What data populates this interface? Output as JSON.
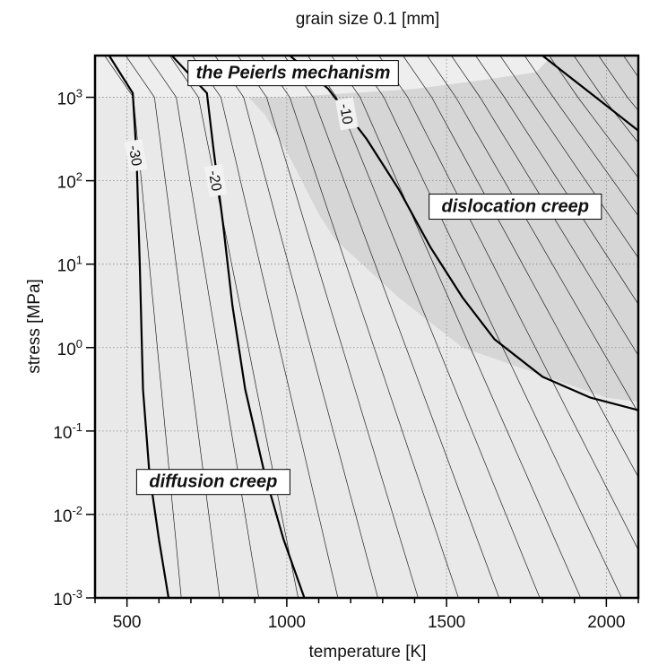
{
  "chart_data": {
    "type": "contour",
    "title": "grain size 0.1 [mm]",
    "xlabel": "temperature [K]",
    "ylabel": "stress [MPa]",
    "xlim": [
      400,
      2100
    ],
    "ylim_log10": [
      -3,
      3.5
    ],
    "y_scale": "log",
    "x_ticks": [
      {
        "value": 500,
        "label": "500"
      },
      {
        "value": 1000,
        "label": "1000"
      },
      {
        "value": 1500,
        "label": "1500"
      },
      {
        "value": 2000,
        "label": "2000"
      }
    ],
    "y_ticks": [
      {
        "exp": -3,
        "base": "10",
        "sup": "-3"
      },
      {
        "exp": -2,
        "base": "10",
        "sup": "-2"
      },
      {
        "exp": -1,
        "base": "10",
        "sup": "-1"
      },
      {
        "exp": 0,
        "base": "10",
        "sup": "0"
      },
      {
        "exp": 1,
        "base": "10",
        "sup": "1"
      },
      {
        "exp": 2,
        "base": "10",
        "sup": "2"
      },
      {
        "exp": 3,
        "base": "10",
        "sup": "3"
      }
    ],
    "grid": true,
    "regions": [
      {
        "label": "the Peierls mechanism",
        "fill": "#eeeeee"
      },
      {
        "label": "dislocation creep",
        "fill": "#d6d6d6"
      },
      {
        "label": "diffusion creep",
        "fill": "#e9e9e9"
      }
    ],
    "regions_label_anchor": [
      {
        "x": 1020,
        "y_log10": 3.3
      },
      {
        "x": 1715,
        "y_log10": 1.7
      },
      {
        "x": 770,
        "y_log10": -1.6
      }
    ],
    "dislocation_boundary": [
      [
        880,
        3.0
      ],
      [
        930,
        2.8
      ],
      [
        1000,
        2.35
      ],
      [
        1060,
        1.9
      ],
      [
        1100,
        1.6
      ],
      [
        1150,
        1.3
      ],
      [
        1250,
        0.95
      ],
      [
        1350,
        0.6
      ],
      [
        1450,
        0.3
      ],
      [
        1550,
        0.0
      ],
      [
        1700,
        -0.2
      ],
      [
        1850,
        -0.4
      ],
      [
        2000,
        -0.6
      ],
      [
        2100,
        -0.65
      ]
    ],
    "dislocation_top_edge": [
      [
        2100,
        3.5
      ],
      [
        1830,
        3.5
      ],
      [
        1780,
        3.3
      ],
      [
        1600,
        3.2
      ],
      [
        1400,
        3.1
      ],
      [
        1200,
        3.05
      ],
      [
        1000,
        3.0
      ]
    ],
    "contours": [
      {
        "level": -30,
        "label": "-30",
        "major": true,
        "points": [
          [
            444,
            3.5
          ],
          [
            518,
            3.05
          ],
          [
            530,
            2.3
          ],
          [
            540,
            1.0
          ],
          [
            550,
            -0.5
          ],
          [
            570,
            -1.5
          ],
          [
            600,
            -2.3
          ],
          [
            630,
            -3.0
          ]
        ]
      },
      {
        "level": -20,
        "label": "-20",
        "major": true,
        "points": [
          [
            640,
            3.5
          ],
          [
            750,
            3.05
          ],
          [
            770,
            2.4
          ],
          [
            800,
            1.5
          ],
          [
            830,
            0.5
          ],
          [
            870,
            -0.5
          ],
          [
            930,
            -1.5
          ],
          [
            990,
            -2.3
          ],
          [
            1055,
            -3.0
          ]
        ]
      },
      {
        "level": -10,
        "label": "-10",
        "major": true,
        "points": [
          [
            1010,
            3.5
          ],
          [
            1130,
            3.1
          ],
          [
            1250,
            2.5
          ],
          [
            1350,
            1.9
          ],
          [
            1450,
            1.2
          ],
          [
            1550,
            0.6
          ],
          [
            1650,
            0.1
          ],
          [
            1800,
            -0.35
          ],
          [
            1950,
            -0.6
          ],
          [
            2100,
            -0.75
          ]
        ]
      },
      {
        "level": 0,
        "label": "",
        "major": true,
        "points": [
          [
            1800,
            3.5
          ],
          [
            1900,
            3.2
          ],
          [
            2000,
            2.9
          ],
          [
            2100,
            2.6
          ]
        ]
      }
    ],
    "contour_labels": [
      {
        "text": "-30",
        "x": 525,
        "y_log10": 2.3
      },
      {
        "text": "-20",
        "x": 775,
        "y_log10": 2.0
      },
      {
        "text": "-10",
        "x": 1185,
        "y_log10": 2.8
      }
    ]
  }
}
